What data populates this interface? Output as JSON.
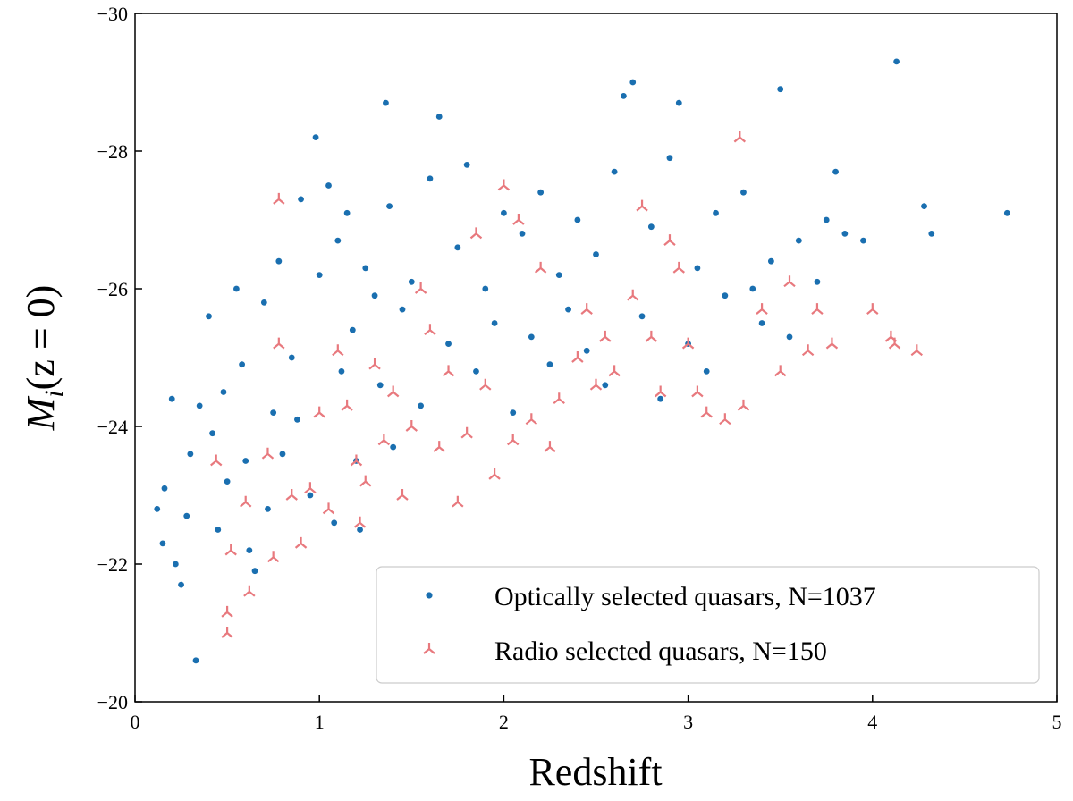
{
  "chart_data": {
    "type": "scatter",
    "xlabel": "Redshift",
    "ylabel": "M_i(z = 0)",
    "ylabel_parts": {
      "main": "M",
      "sub": "i",
      "rest": "(z = 0)"
    },
    "xlim": [
      0,
      5
    ],
    "ylim": [
      -20,
      -30
    ],
    "y_inverted": true,
    "xticks": [
      0,
      1,
      2,
      3,
      4,
      5
    ],
    "yticks": [
      -20,
      -22,
      -24,
      -26,
      -28,
      -30
    ],
    "grid": false,
    "legend_position": "lower-right",
    "series": [
      {
        "name": "Optically selected quasars, N=1037",
        "marker": "dot",
        "color": "#1a6fb0",
        "summary": {
          "count": 1037,
          "x_range": [
            0.1,
            4.75
          ],
          "y_range": [
            -20.6,
            -29.3
          ]
        },
        "points": [
          [
            0.12,
            -22.8
          ],
          [
            0.15,
            -22.3
          ],
          [
            0.16,
            -23.1
          ],
          [
            0.2,
            -24.4
          ],
          [
            0.22,
            -22.0
          ],
          [
            0.25,
            -21.7
          ],
          [
            0.28,
            -22.7
          ],
          [
            0.3,
            -23.6
          ],
          [
            0.33,
            -20.6
          ],
          [
            0.35,
            -24.3
          ],
          [
            0.4,
            -25.6
          ],
          [
            0.42,
            -23.9
          ],
          [
            0.45,
            -22.5
          ],
          [
            0.48,
            -24.5
          ],
          [
            0.5,
            -23.2
          ],
          [
            0.55,
            -26.0
          ],
          [
            0.58,
            -24.9
          ],
          [
            0.6,
            -23.5
          ],
          [
            0.62,
            -22.2
          ],
          [
            0.65,
            -21.9
          ],
          [
            0.7,
            -25.8
          ],
          [
            0.72,
            -22.8
          ],
          [
            0.75,
            -24.2
          ],
          [
            0.78,
            -26.4
          ],
          [
            0.8,
            -23.6
          ],
          [
            0.85,
            -25.0
          ],
          [
            0.88,
            -24.1
          ],
          [
            0.9,
            -27.3
          ],
          [
            0.95,
            -23.0
          ],
          [
            0.98,
            -28.2
          ],
          [
            1.0,
            -26.2
          ],
          [
            1.05,
            -27.5
          ],
          [
            1.08,
            -22.6
          ],
          [
            1.1,
            -26.7
          ],
          [
            1.12,
            -24.8
          ],
          [
            1.15,
            -27.1
          ],
          [
            1.18,
            -25.4
          ],
          [
            1.2,
            -23.5
          ],
          [
            1.22,
            -22.5
          ],
          [
            1.25,
            -26.3
          ],
          [
            1.3,
            -25.9
          ],
          [
            1.33,
            -24.6
          ],
          [
            1.36,
            -28.7
          ],
          [
            1.38,
            -27.2
          ],
          [
            1.4,
            -23.7
          ],
          [
            1.45,
            -25.7
          ],
          [
            1.5,
            -26.1
          ],
          [
            1.55,
            -24.3
          ],
          [
            1.6,
            -27.6
          ],
          [
            1.65,
            -28.5
          ],
          [
            1.7,
            -25.2
          ],
          [
            1.75,
            -26.6
          ],
          [
            1.8,
            -27.8
          ],
          [
            1.85,
            -24.8
          ],
          [
            1.9,
            -26.0
          ],
          [
            1.95,
            -25.5
          ],
          [
            2.0,
            -27.1
          ],
          [
            2.05,
            -24.2
          ],
          [
            2.1,
            -26.8
          ],
          [
            2.15,
            -25.3
          ],
          [
            2.2,
            -27.4
          ],
          [
            2.25,
            -24.9
          ],
          [
            2.3,
            -26.2
          ],
          [
            2.35,
            -25.7
          ],
          [
            2.4,
            -27.0
          ],
          [
            2.45,
            -25.1
          ],
          [
            2.5,
            -26.5
          ],
          [
            2.55,
            -24.6
          ],
          [
            2.6,
            -27.7
          ],
          [
            2.65,
            -28.8
          ],
          [
            2.7,
            -29.0
          ],
          [
            2.75,
            -25.6
          ],
          [
            2.8,
            -26.9
          ],
          [
            2.85,
            -24.4
          ],
          [
            2.9,
            -27.9
          ],
          [
            2.95,
            -28.7
          ],
          [
            3.0,
            -25.2
          ],
          [
            3.05,
            -26.3
          ],
          [
            3.1,
            -24.8
          ],
          [
            3.15,
            -27.1
          ],
          [
            3.2,
            -25.9
          ],
          [
            3.3,
            -27.4
          ],
          [
            3.35,
            -26.0
          ],
          [
            3.4,
            -25.5
          ],
          [
            3.45,
            -26.4
          ],
          [
            3.5,
            -28.9
          ],
          [
            3.55,
            -25.3
          ],
          [
            3.6,
            -26.7
          ],
          [
            3.7,
            -26.1
          ],
          [
            3.75,
            -27.0
          ],
          [
            3.8,
            -27.7
          ],
          [
            3.85,
            -26.8
          ],
          [
            3.95,
            -26.7
          ],
          [
            4.13,
            -29.3
          ],
          [
            4.28,
            -27.2
          ],
          [
            4.32,
            -26.8
          ],
          [
            4.73,
            -27.1
          ]
        ]
      },
      {
        "name": "Radio selected quasars, N=150",
        "marker": "tri_down",
        "color": "#e8797e",
        "summary": {
          "count": 150,
          "x_range": [
            0.44,
            4.24
          ],
          "y_range": [
            -21.0,
            -28.2
          ]
        },
        "points": [
          [
            0.44,
            -23.5
          ],
          [
            0.5,
            -21.3
          ],
          [
            0.5,
            -21.0
          ],
          [
            0.52,
            -22.2
          ],
          [
            0.6,
            -22.9
          ],
          [
            0.62,
            -21.6
          ],
          [
            0.72,
            -23.6
          ],
          [
            0.75,
            -22.1
          ],
          [
            0.78,
            -25.2
          ],
          [
            0.78,
            -27.3
          ],
          [
            0.85,
            -23.0
          ],
          [
            0.9,
            -22.3
          ],
          [
            0.95,
            -23.1
          ],
          [
            1.0,
            -24.2
          ],
          [
            1.05,
            -22.8
          ],
          [
            1.1,
            -25.1
          ],
          [
            1.15,
            -24.3
          ],
          [
            1.2,
            -23.5
          ],
          [
            1.22,
            -22.6
          ],
          [
            1.25,
            -23.2
          ],
          [
            1.3,
            -24.9
          ],
          [
            1.35,
            -23.8
          ],
          [
            1.4,
            -24.5
          ],
          [
            1.45,
            -23.0
          ],
          [
            1.5,
            -24.0
          ],
          [
            1.55,
            -26.0
          ],
          [
            1.6,
            -25.4
          ],
          [
            1.65,
            -23.7
          ],
          [
            1.7,
            -24.8
          ],
          [
            1.75,
            -22.9
          ],
          [
            1.8,
            -23.9
          ],
          [
            1.85,
            -26.8
          ],
          [
            1.9,
            -24.6
          ],
          [
            1.95,
            -23.3
          ],
          [
            2.0,
            -27.5
          ],
          [
            2.05,
            -23.8
          ],
          [
            2.08,
            -27.0
          ],
          [
            2.15,
            -24.1
          ],
          [
            2.2,
            -26.3
          ],
          [
            2.25,
            -23.7
          ],
          [
            2.3,
            -24.4
          ],
          [
            2.4,
            -25.0
          ],
          [
            2.45,
            -25.7
          ],
          [
            2.5,
            -24.6
          ],
          [
            2.55,
            -25.3
          ],
          [
            2.6,
            -24.8
          ],
          [
            2.7,
            -25.9
          ],
          [
            2.75,
            -27.2
          ],
          [
            2.8,
            -25.3
          ],
          [
            2.85,
            -24.5
          ],
          [
            2.9,
            -26.7
          ],
          [
            2.95,
            -26.3
          ],
          [
            3.0,
            -25.2
          ],
          [
            3.05,
            -24.5
          ],
          [
            3.1,
            -24.2
          ],
          [
            3.2,
            -24.1
          ],
          [
            3.28,
            -28.2
          ],
          [
            3.3,
            -24.3
          ],
          [
            3.4,
            -25.7
          ],
          [
            3.5,
            -24.8
          ],
          [
            3.55,
            -26.1
          ],
          [
            3.65,
            -25.1
          ],
          [
            3.7,
            -25.7
          ],
          [
            3.78,
            -25.2
          ],
          [
            4.0,
            -25.7
          ],
          [
            4.1,
            -25.3
          ],
          [
            4.12,
            -25.2
          ],
          [
            4.24,
            -25.1
          ]
        ]
      }
    ]
  }
}
